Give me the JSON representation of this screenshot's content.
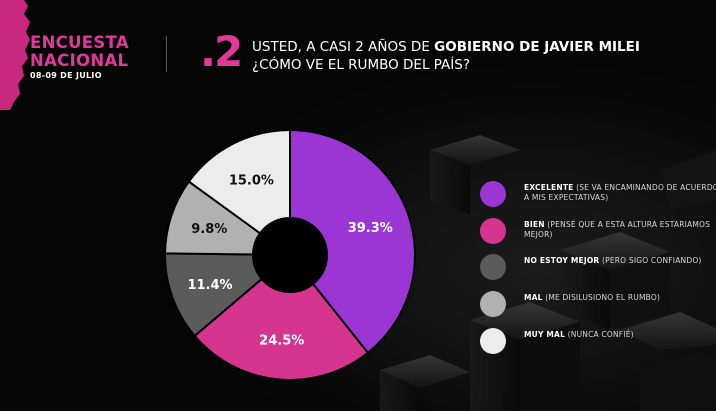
{
  "header": {
    "brand_line1": "ENCUESTA",
    "brand_line2": "NACIONAL",
    "date": "08-09 DE JULIO",
    "question_number": ".2",
    "question_line1_prefix": "USTED, A CASI 2 AÑOS DE ",
    "question_line1_bold": "GOBIERNO DE JAVIER MILEI",
    "question_line2": "¿CÓMO VE EL RUMBO DEL PAÍS?"
  },
  "colors": {
    "accent": "#e0399a",
    "background": "#050505"
  },
  "chart_data": {
    "type": "pie",
    "donut": true,
    "categories": [
      "EXCELENTE",
      "BIEN",
      "NO ESTOY MEJOR",
      "MAL",
      "MUY MAL"
    ],
    "values": [
      39.3,
      24.5,
      11.4,
      9.8,
      15.0
    ],
    "labels": [
      "39.3%",
      "24.5%",
      "11.4%",
      "9.8%",
      "15.0%"
    ],
    "colors": [
      "#9b35d3",
      "#d6358f",
      "#5b5b5b",
      "#b1b1b1",
      "#ececec"
    ],
    "label_colors": [
      "#ffffff",
      "#ffffff",
      "#ffffff",
      "#111111",
      "#111111"
    ],
    "legend_placement": "right",
    "legend": [
      {
        "label": "EXCELENTE",
        "sub": "(SE VA ENCAMINANDO DE ACUERDO A MIS EXPECTATIVAS)",
        "color": "#9b35d3"
      },
      {
        "label": "BIEN",
        "sub": "(PENSÉ QUE A ESTA ALTURA ESTARIAMOS MEJOR)",
        "color": "#d6358f"
      },
      {
        "label": "NO ESTOY MEJOR",
        "sub": "(PERO SIGO CONFIANDO)",
        "color": "#5b5b5b"
      },
      {
        "label": "MAL",
        "sub": "(ME DISILUSIONO EL RUMBO)",
        "color": "#b1b1b1"
      },
      {
        "label": "MUY MAL",
        "sub": "(NUNCA CONFIÉ)",
        "color": "#ececec"
      }
    ]
  }
}
